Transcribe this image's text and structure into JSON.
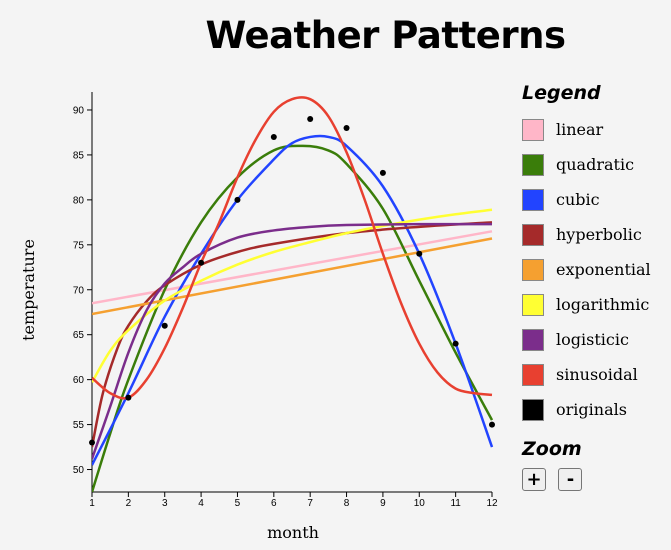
{
  "title": "Weather Patterns",
  "chart_data": {
    "type": "scatter",
    "title": "Weather Patterns",
    "xlabel": "month",
    "ylabel": "temperature",
    "xlim": [
      1,
      12
    ],
    "ylim": [
      47.5,
      92
    ],
    "x_ticks": [
      1,
      2,
      3,
      4,
      5,
      6,
      7,
      8,
      9,
      10,
      11,
      12
    ],
    "y_ticks": [
      50,
      55,
      60,
      65,
      70,
      75,
      80,
      85,
      90
    ],
    "originals": {
      "x": [
        1,
        2,
        3,
        4,
        5,
        6,
        7,
        8,
        9,
        10,
        11,
        12
      ],
      "y": [
        53,
        58,
        66,
        73,
        80,
        87,
        89,
        88,
        83,
        74,
        64,
        55
      ]
    },
    "series": [
      {
        "name": "linear",
        "color": "#ffb6c8",
        "x": [
          1,
          12
        ],
        "y": [
          68.5,
          76.5
        ]
      },
      {
        "name": "quadratic",
        "color": "#3a7d0a",
        "x": [
          1,
          1.5,
          2,
          3,
          4,
          5,
          6,
          6.8,
          7.5,
          8,
          9,
          10,
          11,
          12
        ],
        "y": [
          47.5,
          54,
          60,
          70,
          77.5,
          82.5,
          85.5,
          86,
          85.5,
          84,
          79,
          71,
          63,
          55.5
        ]
      },
      {
        "name": "cubic",
        "color": "#2244ff",
        "x": [
          1,
          2,
          3,
          4,
          5,
          6,
          6.5,
          7,
          7.5,
          8,
          9,
          10,
          11,
          12
        ],
        "y": [
          50.5,
          58.5,
          67,
          74,
          80,
          84.5,
          86.3,
          87,
          87,
          86,
          81.5,
          74,
          64,
          52.5
        ]
      },
      {
        "name": "hyperbolic",
        "color": "#a52a2a",
        "x": [
          1,
          1.3,
          1.7,
          2,
          2.5,
          3,
          4,
          5,
          6,
          8,
          10,
          12
        ],
        "y": [
          52.5,
          58.5,
          63.5,
          66,
          68.7,
          70.5,
          72.8,
          74.2,
          75.1,
          76.3,
          77,
          77.5
        ]
      },
      {
        "name": "exponential",
        "color": "#f5a030",
        "x": [
          1,
          12
        ],
        "y": [
          67.3,
          75.7
        ]
      },
      {
        "name": "logarithmic",
        "color": "#ffff33",
        "x": [
          1,
          1.5,
          2,
          3,
          4,
          5,
          6,
          7,
          8,
          9,
          10,
          11,
          12
        ],
        "y": [
          59.7,
          63.2,
          65.5,
          68.8,
          71,
          72.8,
          74.2,
          75.3,
          76.3,
          77.1,
          77.8,
          78.4,
          78.9
        ]
      },
      {
        "name": "logisticic",
        "color": "#7b2d8b",
        "x": [
          1,
          1.5,
          2,
          2.5,
          3,
          3.5,
          4,
          5,
          6,
          7,
          8,
          10,
          12
        ],
        "y": [
          51.2,
          57,
          63,
          67.7,
          70.7,
          72.5,
          74,
          75.8,
          76.6,
          77,
          77.2,
          77.3,
          77.3
        ]
      },
      {
        "name": "sinusoidal",
        "color": "#e84030",
        "x": [
          1,
          1.5,
          2,
          2.5,
          3,
          3.5,
          4,
          4.5,
          5,
          5.5,
          6,
          6.5,
          7,
          7.5,
          8,
          8.5,
          9,
          9.5,
          10,
          10.5,
          11,
          11.5,
          12
        ],
        "y": [
          60.2,
          58.5,
          58,
          60,
          63.5,
          68,
          73,
          77.5,
          82.5,
          86.7,
          89.8,
          91.2,
          91.2,
          89.3,
          85.3,
          80,
          74,
          68.5,
          64,
          60.8,
          59,
          58.5,
          58.3
        ]
      }
    ]
  },
  "legend": {
    "title": "Legend",
    "items": [
      {
        "label": "linear",
        "color": "#ffb6c8"
      },
      {
        "label": "quadratic",
        "color": "#3a7d0a"
      },
      {
        "label": "cubic",
        "color": "#2244ff"
      },
      {
        "label": "hyperbolic",
        "color": "#a52a2a"
      },
      {
        "label": "exponential",
        "color": "#f5a030"
      },
      {
        "label": "logarithmic",
        "color": "#ffff33"
      },
      {
        "label": "logisticic",
        "color": "#7b2d8b"
      },
      {
        "label": "sinusoidal",
        "color": "#e84030"
      },
      {
        "label": "originals",
        "color": "#000000"
      }
    ]
  },
  "zoom": {
    "title": "Zoom",
    "in_label": "+",
    "out_label": "-"
  }
}
